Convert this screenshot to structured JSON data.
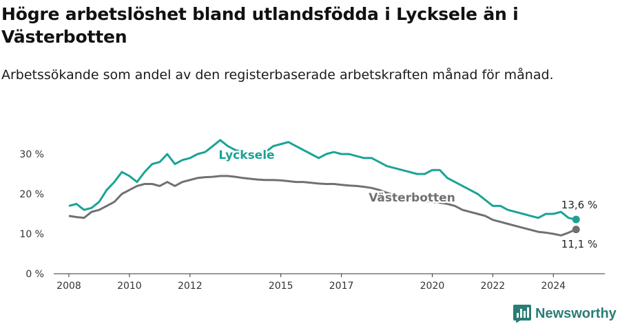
{
  "header": {
    "title": "Högre arbetslöshet bland utlandsfödda i Lycksele än i Västerbotten",
    "subtitle": "Arbetssökande som andel av den registerbaserade arbetskraften månad för månad."
  },
  "brand": {
    "name": "Newsworthy",
    "icon": "newsworthy-logo-icon"
  },
  "colors": {
    "lycksele": "#1aa394",
    "vasterbotten": "#707070",
    "axis": "#333333",
    "grid": "#dddddd"
  },
  "chart_data": {
    "type": "line",
    "xlim": [
      2007.5,
      2025.7
    ],
    "ylim": [
      0,
      35
    ],
    "x_ticks": [
      2008,
      2010,
      2012,
      2015,
      2017,
      2020,
      2022,
      2024
    ],
    "x_tick_labels": [
      "2008",
      "2010",
      "2012",
      "2015",
      "2017",
      "2020",
      "2022",
      "2024"
    ],
    "y_ticks": [
      0,
      10,
      20,
      30
    ],
    "y_tick_labels": [
      "0 %",
      "10 %",
      "20 %",
      "30 %"
    ],
    "grid": false,
    "series": [
      {
        "name": "Lycksele",
        "color": "#1aa394",
        "end_label": "13,6 %",
        "x": [
          2008.0,
          2008.25,
          2008.5,
          2008.75,
          2009.0,
          2009.25,
          2009.5,
          2009.75,
          2010.0,
          2010.25,
          2010.5,
          2010.75,
          2011.0,
          2011.25,
          2011.5,
          2011.75,
          2012.0,
          2012.25,
          2012.5,
          2012.75,
          2013.0,
          2013.25,
          2013.5,
          2013.75,
          2014.0,
          2014.25,
          2014.5,
          2014.75,
          2015.0,
          2015.25,
          2015.5,
          2015.75,
          2016.0,
          2016.25,
          2016.5,
          2016.75,
          2017.0,
          2017.25,
          2017.5,
          2017.75,
          2018.0,
          2018.25,
          2018.5,
          2018.75,
          2019.0,
          2019.25,
          2019.5,
          2019.75,
          2020.0,
          2020.25,
          2020.5,
          2020.75,
          2021.0,
          2021.25,
          2021.5,
          2021.75,
          2022.0,
          2022.25,
          2022.5,
          2022.75,
          2023.0,
          2023.25,
          2023.5,
          2023.75,
          2024.0,
          2024.25,
          2024.5,
          2024.75
        ],
        "y": [
          17,
          17.5,
          16,
          16.5,
          18,
          21,
          23,
          25.5,
          24.5,
          23,
          25.5,
          27.5,
          28,
          30,
          27.5,
          28.5,
          29,
          30,
          30.5,
          32,
          33.5,
          32,
          31,
          30.5,
          30,
          30.5,
          30.5,
          32,
          32.5,
          33,
          32,
          31,
          30,
          29,
          30,
          30.5,
          30,
          30,
          29.5,
          29,
          29,
          28,
          27,
          26.5,
          26,
          25.5,
          25,
          25,
          26,
          26,
          24,
          23,
          22,
          21,
          20,
          18.5,
          17,
          17,
          16,
          15.5,
          15,
          14.5,
          14,
          15,
          15,
          15.5,
          14,
          13.6
        ]
      },
      {
        "name": "Västerbotten",
        "color": "#707070",
        "end_label": "11,1 %",
        "x": [
          2008.0,
          2008.25,
          2008.5,
          2008.75,
          2009.0,
          2009.25,
          2009.5,
          2009.75,
          2010.0,
          2010.25,
          2010.5,
          2010.75,
          2011.0,
          2011.25,
          2011.5,
          2011.75,
          2012.0,
          2012.25,
          2012.5,
          2012.75,
          2013.0,
          2013.25,
          2013.5,
          2013.75,
          2014.0,
          2014.25,
          2014.5,
          2014.75,
          2015.0,
          2015.25,
          2015.5,
          2015.75,
          2016.0,
          2016.25,
          2016.5,
          2016.75,
          2017.0,
          2017.25,
          2017.5,
          2017.75,
          2018.0,
          2018.25,
          2018.5,
          2018.75,
          2019.0,
          2019.25,
          2019.5,
          2019.75,
          2020.0,
          2020.25,
          2020.5,
          2020.75,
          2021.0,
          2021.25,
          2021.5,
          2021.75,
          2022.0,
          2022.25,
          2022.5,
          2022.75,
          2023.0,
          2023.25,
          2023.5,
          2023.75,
          2024.0,
          2024.25,
          2024.5,
          2024.75
        ],
        "y": [
          14.5,
          14.2,
          14,
          15.5,
          16,
          17,
          18,
          20,
          21,
          22,
          22.5,
          22.5,
          22,
          23,
          22,
          23,
          23.5,
          24,
          24.2,
          24.3,
          24.5,
          24.5,
          24.3,
          24,
          23.8,
          23.6,
          23.5,
          23.5,
          23.4,
          23.2,
          23,
          23,
          22.8,
          22.6,
          22.5,
          22.5,
          22.3,
          22.1,
          22,
          21.8,
          21.5,
          21,
          20.3,
          19.7,
          19.2,
          18.8,
          18.5,
          18.2,
          18,
          17.8,
          17.5,
          17,
          16,
          15.5,
          15,
          14.5,
          13.5,
          13,
          12.5,
          12,
          11.5,
          11,
          10.5,
          10.3,
          10,
          9.6,
          10.3,
          11.1
        ]
      }
    ]
  }
}
